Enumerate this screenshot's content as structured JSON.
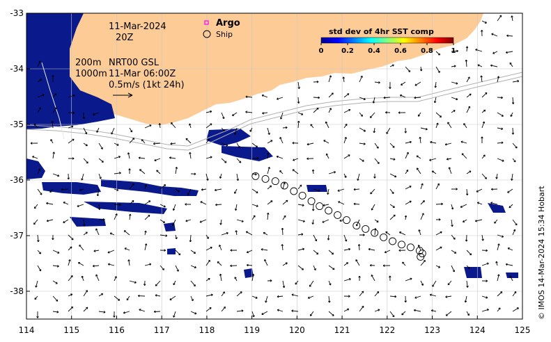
{
  "map": {
    "date_line": "11-Mar-2024",
    "time_line": "20Z",
    "contour_200": "200m",
    "contour_1000": "1000m",
    "product_line": "NRT00 GSL",
    "product_time": "11-Mar 06:00Z",
    "scale_label": "0.5m/s (1kt 24h)",
    "credit": "© IMOS 14-Mar-2024 15:34 Hobart",
    "colors": {
      "land": "#fccb96",
      "patch": "#0a1a8c",
      "grid": "#c8c8c8",
      "argo": "#ff00ff"
    }
  },
  "legend": {
    "argo_label": "Argo",
    "ship_label": "Ship"
  },
  "colorbar": {
    "title": "std dev of 4hr SST comp",
    "ticks": [
      "0",
      "0.2",
      "0.4",
      "0.6",
      "0.8",
      "1"
    ],
    "colormap": "jet"
  },
  "axes": {
    "x_ticks": [
      "114",
      "115",
      "116",
      "117",
      "118",
      "119",
      "120",
      "121",
      "122",
      "123",
      "124",
      "125"
    ],
    "y_ticks": [
      "-33",
      "-34",
      "-35",
      "-36",
      "-37",
      "-38"
    ],
    "xlim": [
      114,
      125
    ],
    "ylim": [
      -38.5,
      -33
    ],
    "grid": true
  },
  "ship_track": [
    [
      119.08,
      -35.93
    ],
    [
      119.3,
      -35.98
    ],
    [
      119.52,
      -36.02
    ],
    [
      119.72,
      -36.1
    ],
    [
      119.93,
      -36.2
    ],
    [
      120.12,
      -36.28
    ],
    [
      120.32,
      -36.38
    ],
    [
      120.5,
      -36.47
    ],
    [
      120.7,
      -36.55
    ],
    [
      120.9,
      -36.63
    ],
    [
      121.1,
      -36.72
    ],
    [
      121.32,
      -36.82
    ],
    [
      121.52,
      -36.88
    ],
    [
      121.72,
      -36.95
    ],
    [
      121.92,
      -37.03
    ],
    [
      122.12,
      -37.1
    ],
    [
      122.32,
      -37.16
    ],
    [
      122.52,
      -37.21
    ],
    [
      122.72,
      -37.27
    ],
    [
      122.78,
      -37.32
    ],
    [
      122.74,
      -37.38
    ]
  ]
}
